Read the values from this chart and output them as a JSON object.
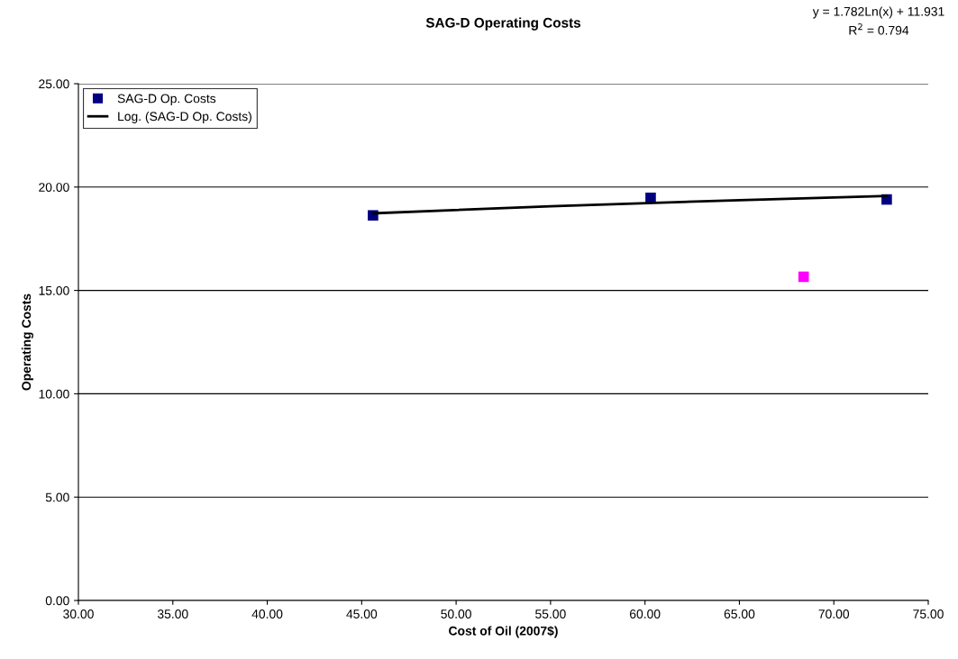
{
  "chart_data": {
    "type": "scatter",
    "title": "SAG-D Operating Costs",
    "xlabel": "Cost of Oil (2007$)",
    "ylabel": "Operating Costs",
    "annotations": [
      "y = 1.782Ln(x) + 11.931",
      "R$^{2}$ = 0.794"
    ],
    "series": [
      {
        "name": "SAG-D Op. Costs",
        "color": "#000080",
        "x": [
          45.6,
          60.3,
          72.8
        ],
        "values": [
          18.63,
          19.48,
          19.4
        ],
        "marker": "square"
      },
      {
        "name": "Log. (SAG-D Op. Costs)",
        "type": "line",
        "color": "#000000",
        "x": [
          45.6,
          55,
          65,
          72.8
        ],
        "values": [
          18.73,
          19.07,
          19.37,
          19.57
        ],
        "marker": "none",
        "line_style": "solid"
      },
      {
        "color": "#ff00ff",
        "x": [
          68.4
        ],
        "values": [
          15.66
        ],
        "marker": "square"
      }
    ],
    "xlim": [
      30,
      75
    ],
    "xticks": [
      {
        "value": 30,
        "label": "30.00"
      },
      {
        "value": 35,
        "label": "35.00"
      },
      {
        "value": 40,
        "label": "40.00"
      },
      {
        "value": 45,
        "label": "45.00"
      },
      {
        "value": 50,
        "label": "50.00"
      },
      {
        "value": 55,
        "label": "55.00"
      },
      {
        "value": 60,
        "label": "60.00"
      },
      {
        "value": 65,
        "label": "65.00"
      },
      {
        "value": 70,
        "label": "70.00"
      },
      {
        "value": 75,
        "label": "75.00"
      }
    ],
    "ylim": [
      0,
      25
    ],
    "yticks": [
      {
        "value": 0,
        "label": "0.00"
      },
      {
        "value": 5,
        "label": "5.00"
      },
      {
        "value": 10,
        "label": "10.00"
      },
      {
        "value": 15,
        "label": "15.00"
      },
      {
        "value": 20,
        "label": "20.00"
      },
      {
        "value": 25,
        "label": "25.00"
      }
    ],
    "grid": "y",
    "legend": "top left"
  }
}
